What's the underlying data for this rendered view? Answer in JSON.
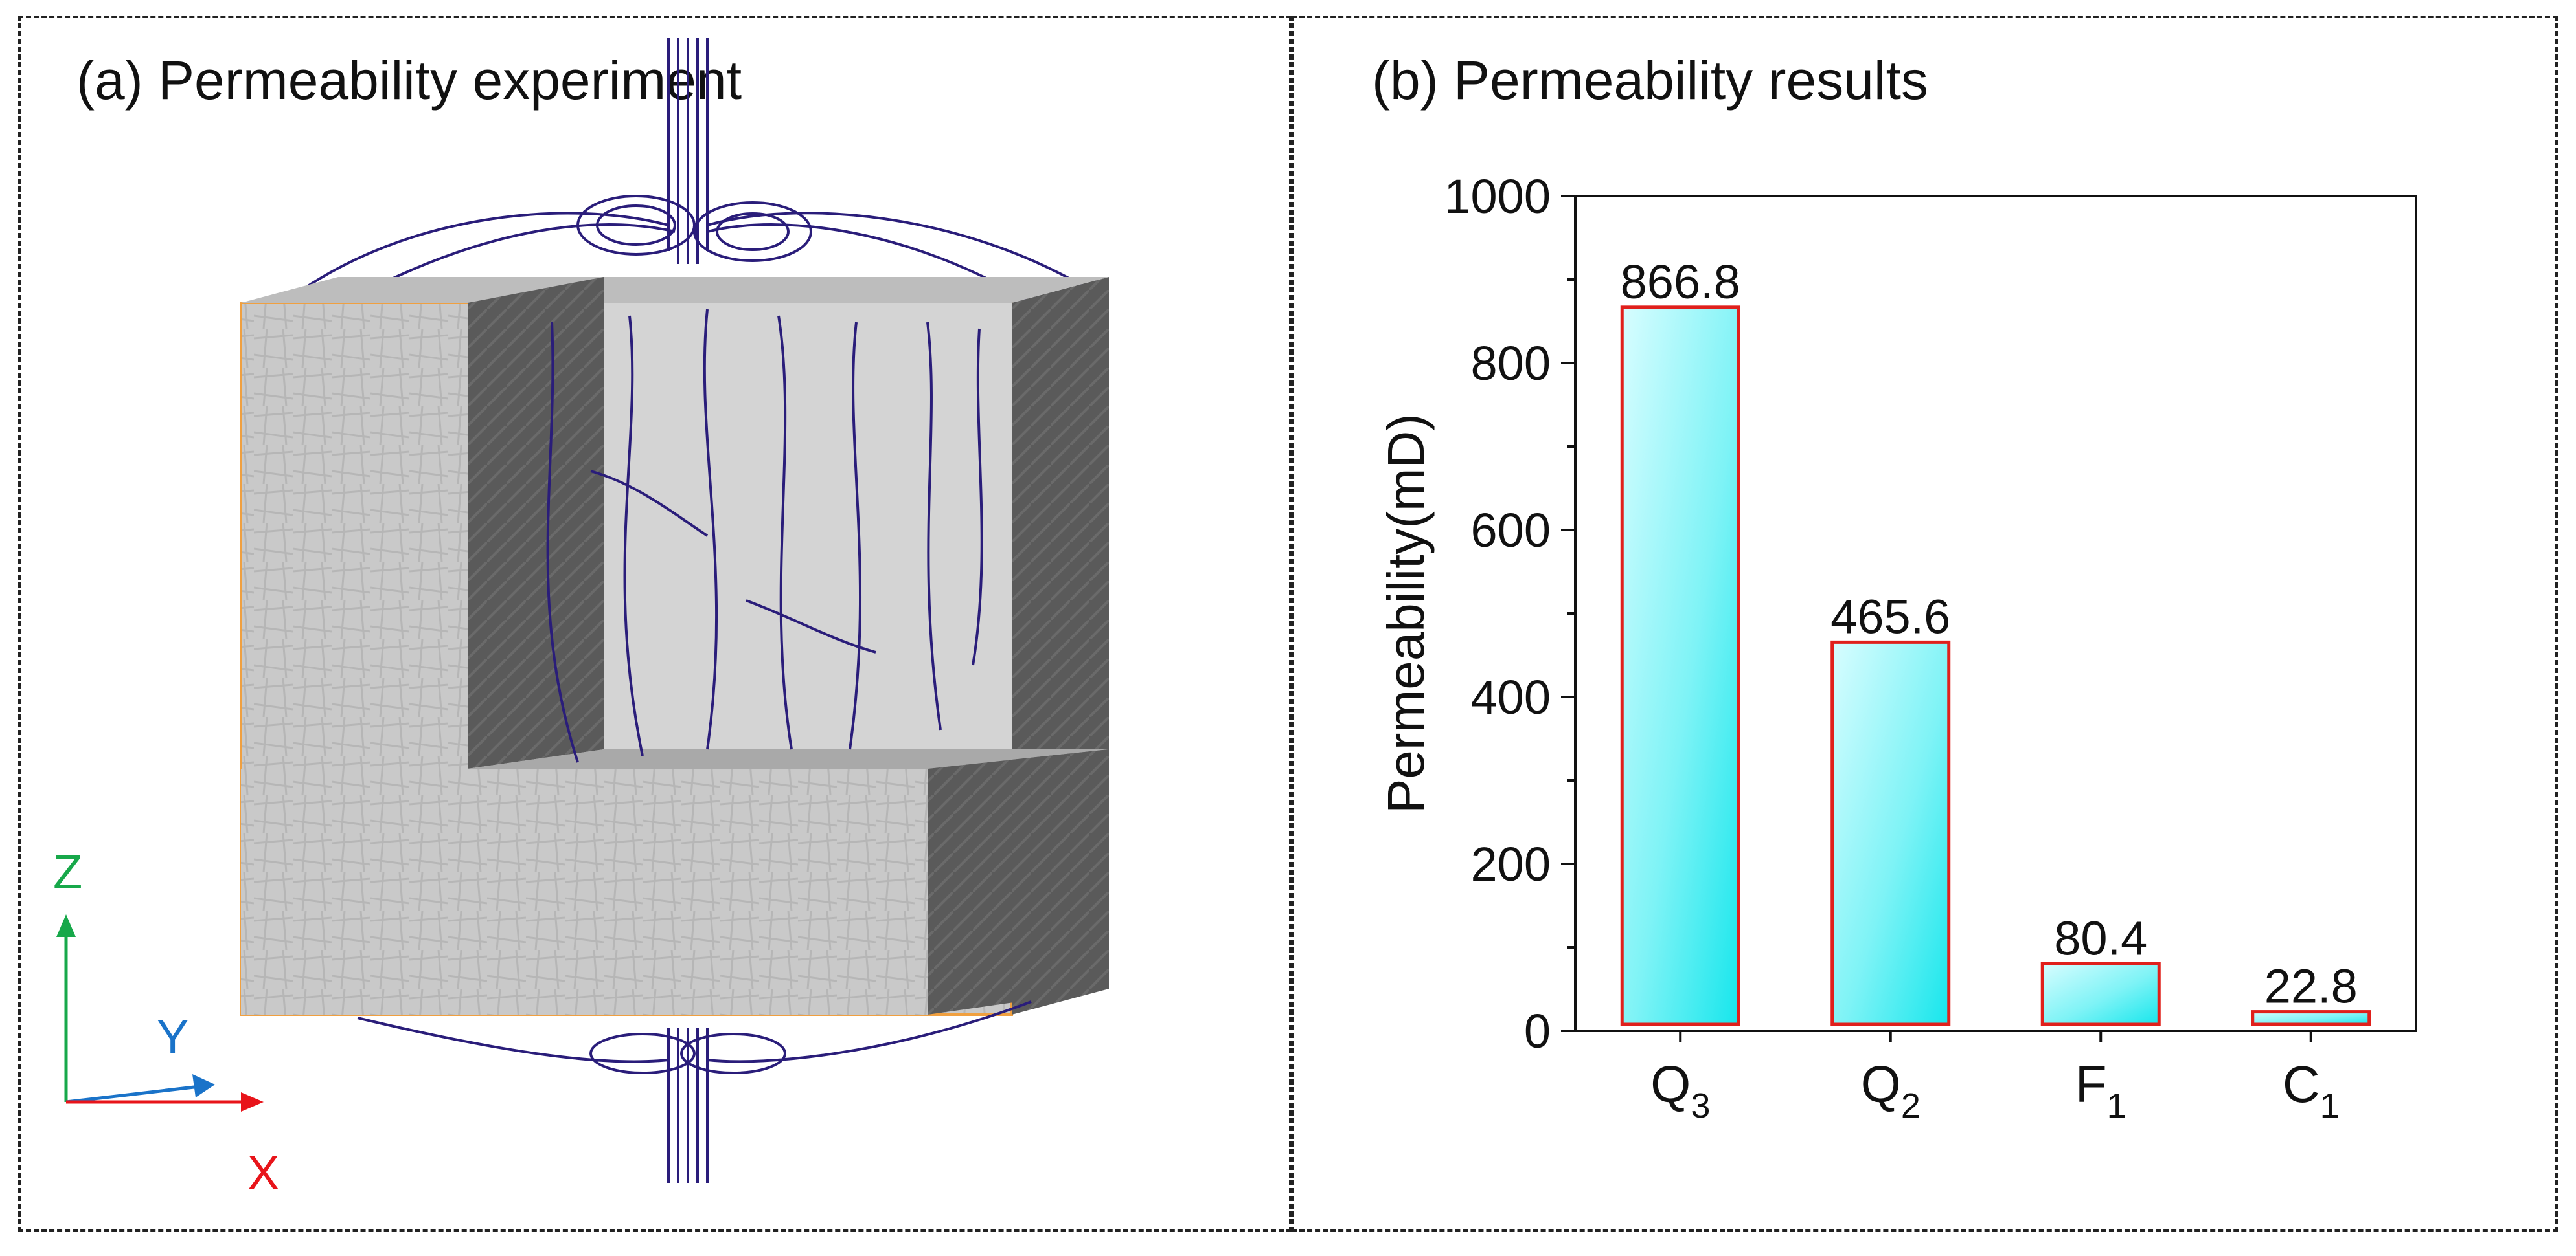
{
  "panel_a": {
    "title": "(a) Permeability experiment",
    "axes": {
      "z": "Z",
      "y": "Y",
      "x": "X"
    },
    "colors": {
      "z_axis": "#17a84a",
      "y_axis": "#1a73c9",
      "x_axis": "#e8141a",
      "edge": "#f0a040",
      "stream": "#2a1d7a"
    }
  },
  "panel_b": {
    "title": "(b) Permeability results"
  },
  "chart_data": {
    "type": "bar",
    "title": "(b) Permeability results",
    "xlabel": "",
    "ylabel": "Permeability(mD)",
    "ylim": [
      0,
      1000
    ],
    "yticks": [
      0,
      200,
      400,
      600,
      800,
      1000
    ],
    "categories": [
      {
        "base": "Q",
        "sub": "3"
      },
      {
        "base": "Q",
        "sub": "2"
      },
      {
        "base": "F",
        "sub": "1"
      },
      {
        "base": "C",
        "sub": "1"
      }
    ],
    "values": [
      866.8,
      465.6,
      80.4,
      22.8
    ],
    "data_labels": [
      "866.8",
      "465.6",
      "80.4",
      "22.8"
    ],
    "colors": {
      "bar_fill_light": "#d8fdff",
      "bar_fill_dark": "#17e6ec",
      "bar_edge": "#e0201c"
    }
  }
}
